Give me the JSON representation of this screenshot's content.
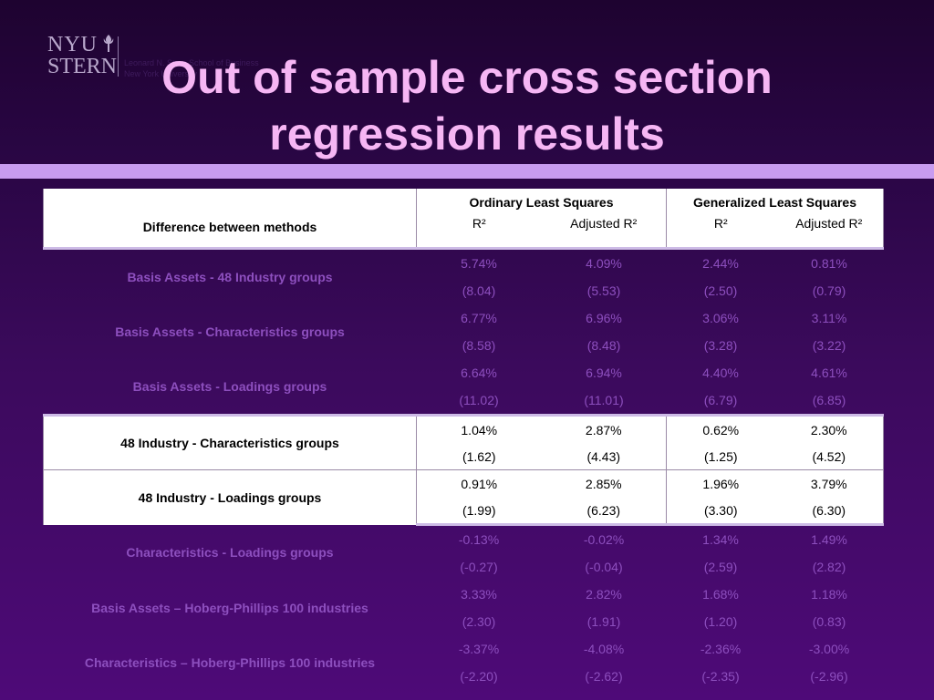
{
  "logo": {
    "line1": "NYU",
    "line2": "STERN",
    "sub1": "Leonard N. Stern School of Business",
    "sub2": "New York University"
  },
  "title": {
    "line1": "Out of sample cross section",
    "line2": "regression results"
  },
  "table": {
    "header": {
      "row_label": "Difference between methods",
      "group1": "Ordinary Least Squares",
      "group2": "Generalized Least Squares",
      "col1": "R²",
      "col2": "Adjusted R²",
      "col3": "R²",
      "col4": "Adjusted R²"
    },
    "rows": [
      {
        "label": "Basis Assets - 48 Industry groups",
        "values": [
          "5.74%",
          "4.09%",
          "2.44%",
          "0.81%"
        ],
        "tstats": [
          "(8.04)",
          "(5.53)",
          "(2.50)",
          "(0.79)"
        ]
      },
      {
        "label": "Basis Assets - Characteristics groups",
        "values": [
          "6.77%",
          "6.96%",
          "3.06%",
          "3.11%"
        ],
        "tstats": [
          "(8.58)",
          "(8.48)",
          "(3.28)",
          "(3.22)"
        ]
      },
      {
        "label": "Basis Assets - Loadings groups",
        "values": [
          "6.64%",
          "6.94%",
          "4.40%",
          "4.61%"
        ],
        "tstats": [
          "(11.02)",
          "(11.01)",
          "(6.79)",
          "(6.85)"
        ]
      },
      {
        "label": "48 Industry - Characteristics groups",
        "values": [
          "1.04%",
          "2.87%",
          "0.62%",
          "2.30%"
        ],
        "tstats": [
          "(1.62)",
          "(4.43)",
          "(1.25)",
          "(4.52)"
        ]
      },
      {
        "label": "48 Industry - Loadings groups",
        "values": [
          "0.91%",
          "2.85%",
          "1.96%",
          "3.79%"
        ],
        "tstats": [
          "(1.99)",
          "(6.23)",
          "(3.30)",
          "(6.30)"
        ]
      },
      {
        "label": "Characteristics - Loadings groups",
        "values": [
          "-0.13%",
          "-0.02%",
          "1.34%",
          "1.49%"
        ],
        "tstats": [
          "(-0.27)",
          "(-0.04)",
          "(2.59)",
          "(2.82)"
        ]
      },
      {
        "label": "Basis Assets – Hoberg-Phillips 100 industries",
        "values": [
          "3.33%",
          "2.82%",
          "1.68%",
          "1.18%"
        ],
        "tstats": [
          "(2.30)",
          "(1.91)",
          "(1.20)",
          "(0.83)"
        ]
      },
      {
        "label": "Characteristics – Hoberg-Phillips 100 industries",
        "values": [
          "-3.37%",
          "-4.08%",
          "-2.36%",
          "-3.00%"
        ],
        "tstats": [
          "(-2.20)",
          "(-2.62)",
          "(-2.35)",
          "(-2.96)"
        ]
      }
    ]
  },
  "colors": {
    "title": "#f6b6f4",
    "band": "#c89cf0",
    "dim_text": "#8d4fbe",
    "highlight_bg": "#ffffff"
  }
}
